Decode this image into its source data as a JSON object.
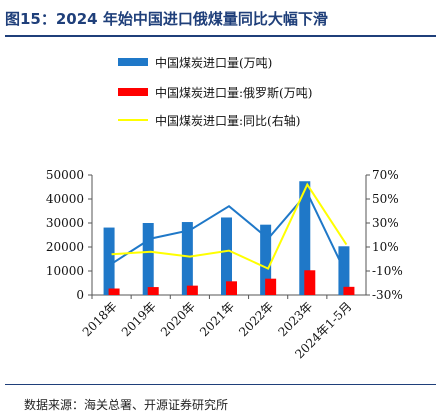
{
  "figure": {
    "title": "图15：2024 年始中国进口俄煤量同比大幅下滑",
    "source": "数据来源：海关总署、开源证券研究所"
  },
  "colors": {
    "blue": "#1f78c8",
    "red": "#ff0000",
    "yellow": "#ffff00",
    "title_blue": "#1f3f7a"
  },
  "chart_data": {
    "type": "bar",
    "categories": [
      "2018年",
      "2019年",
      "2020年",
      "2021年",
      "2022年",
      "2023年",
      "2024年1-5月"
    ],
    "series": [
      {
        "name": "中国煤炭进口量(万吨)",
        "type": "bar",
        "axis": "left",
        "color": "#1f78c8",
        "values": [
          28100,
          30000,
          30400,
          32300,
          29300,
          47400,
          20300
        ]
      },
      {
        "name": "中国煤炭进口量:俄罗斯(万吨)",
        "type": "bar",
        "axis": "left",
        "color": "#ff0000",
        "values": [
          2700,
          3300,
          3900,
          5700,
          6800,
          10300,
          3400
        ]
      },
      {
        "name": "中国煤炭进口量:同比(右轴)",
        "type": "line",
        "axis": "right",
        "color": "#ffff00",
        "values": [
          4,
          6,
          2,
          7,
          -8,
          62,
          12
        ]
      }
    ],
    "overlay_line": {
      "color": "#1f78c8",
      "values": [
        -4,
        17,
        24,
        44,
        17,
        55,
        -13
      ]
    },
    "y_left": {
      "min": 0,
      "max": 50000,
      "ticks": [
        0,
        10000,
        20000,
        30000,
        40000,
        50000
      ]
    },
    "y_right": {
      "min": -30,
      "max": 70,
      "ticks": [
        "-30%",
        "-10%",
        "10%",
        "30%",
        "50%",
        "70%"
      ]
    },
    "legend_position": "top",
    "grid": false
  }
}
